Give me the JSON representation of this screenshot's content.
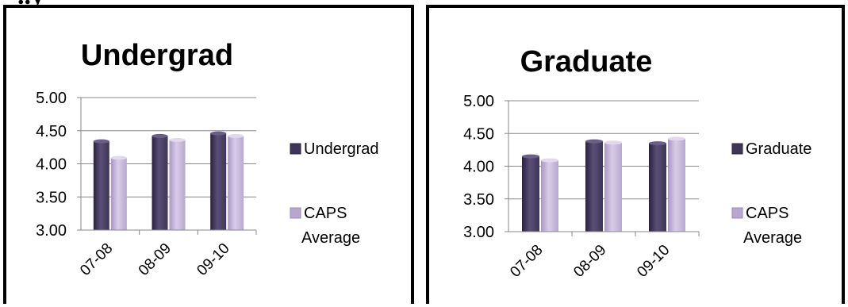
{
  "page": {
    "cut_title": "..y"
  },
  "colors": {
    "dark_series": "#3f3557",
    "light_series": "#b7a7cf",
    "axis": "#888888"
  },
  "chart_data": [
    {
      "type": "bar",
      "title": "Undergrad",
      "categories": [
        "07-08",
        "08-09",
        "09-10"
      ],
      "ylim": [
        3.0,
        5.0
      ],
      "yticks": [
        "5.00",
        "4.50",
        "4.00",
        "3.50",
        "3.00"
      ],
      "grid": true,
      "legend_position": "right",
      "series": [
        {
          "name": "Undergrad",
          "values": [
            4.34,
            4.42,
            4.46
          ]
        },
        {
          "name": "CAPS Average",
          "values": [
            4.09,
            4.36,
            4.42
          ]
        }
      ]
    },
    {
      "type": "bar",
      "title": "Graduate",
      "categories": [
        "07-08",
        "08-09",
        "09-10"
      ],
      "ylim": [
        3.0,
        5.0
      ],
      "yticks": [
        "5.00",
        "4.50",
        "4.00",
        "3.50",
        "3.00"
      ],
      "grid": true,
      "legend_position": "right",
      "series": [
        {
          "name": "Graduate",
          "values": [
            4.15,
            4.38,
            4.35
          ]
        },
        {
          "name": "CAPS Average",
          "values": [
            4.09,
            4.36,
            4.42
          ]
        }
      ]
    }
  ]
}
